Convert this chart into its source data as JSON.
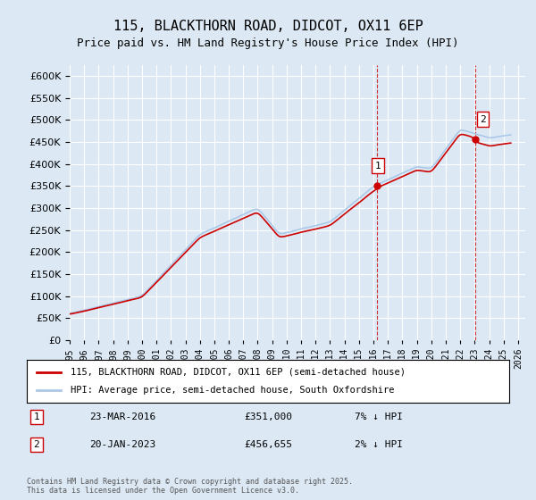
{
  "title": "115, BLACKTHORN ROAD, DIDCOT, OX11 6EP",
  "subtitle": "Price paid vs. HM Land Registry's House Price Index (HPI)",
  "background_color": "#dce9f5",
  "plot_bg_color": "#dce9f5",
  "ylim": [
    0,
    625000
  ],
  "yticks": [
    0,
    50000,
    100000,
    150000,
    200000,
    250000,
    300000,
    350000,
    400000,
    450000,
    500000,
    550000,
    600000
  ],
  "ylabel_format": "£{0}K",
  "xlim_start": 1995.0,
  "xlim_end": 2026.5,
  "grid_color": "#ffffff",
  "hpi_color": "#aac8e8",
  "price_color": "#cc0000",
  "vertical_line_color": "#cc0000",
  "marker1_x": 2016.22,
  "marker1_y": 351000,
  "marker2_x": 2023.05,
  "marker2_y": 456655,
  "legend_label1": "115, BLACKTHORN ROAD, DIDCOT, OX11 6EP (semi-detached house)",
  "legend_label2": "HPI: Average price, semi-detached house, South Oxfordshire",
  "annotation1_date": "23-MAR-2016",
  "annotation1_price": "£351,000",
  "annotation1_hpi": "7% ↓ HPI",
  "annotation2_date": "20-JAN-2023",
  "annotation2_price": "£456,655",
  "annotation2_hpi": "2% ↓ HPI",
  "footnote": "Contains HM Land Registry data © Crown copyright and database right 2025.\nThis data is licensed under the Open Government Licence v3.0."
}
